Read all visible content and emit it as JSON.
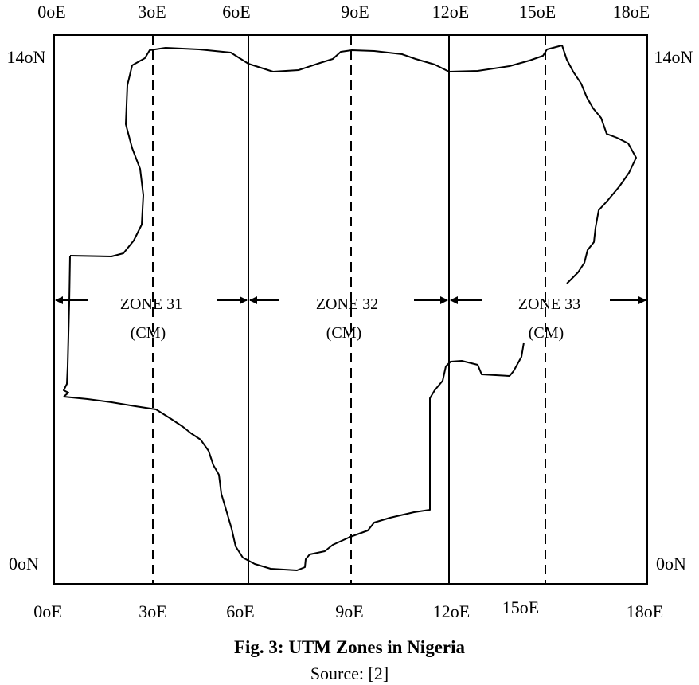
{
  "top_lon_labels": [
    "0oE",
    "3oE",
    "6oE",
    "9oE",
    "12oE",
    "15oE",
    "18oE"
  ],
  "bottom_lon_labels": [
    "0oE",
    "3oE",
    "6oE",
    "9oE",
    "12oE",
    "15oE",
    "18oE"
  ],
  "lat_labels": {
    "top_left": "14oN",
    "top_right": "14oN",
    "bottom_left": "0oN",
    "bottom_right": "0oN"
  },
  "zones": [
    {
      "name": "ZONE 31",
      "cm": "(CM)"
    },
    {
      "name": "ZONE 32",
      "cm": "(CM)"
    },
    {
      "name": "ZONE 33",
      "cm": "(CM)"
    }
  ],
  "caption": {
    "title": "Fig. 3:  UTM Zones in Nigeria",
    "source": "Source: [2]"
  }
}
